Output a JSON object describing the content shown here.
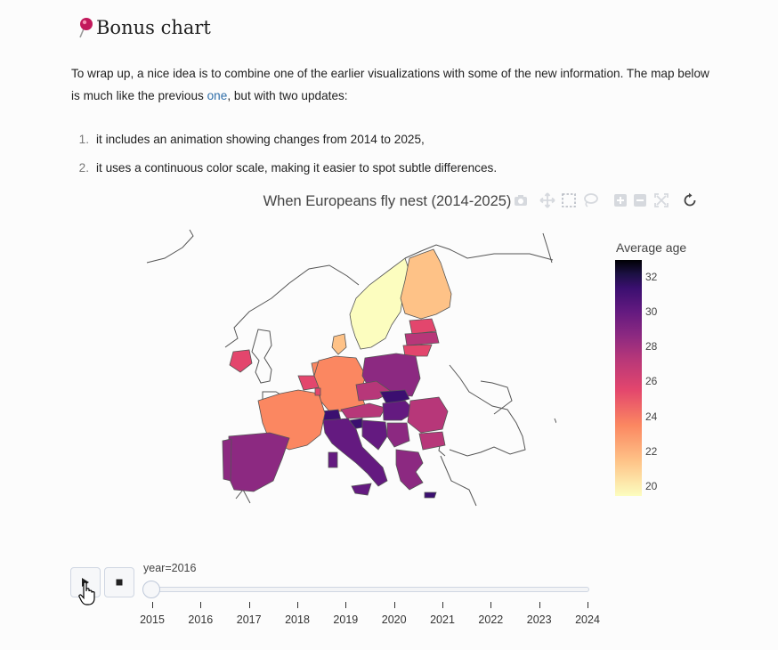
{
  "heading": {
    "icon": "pushpin-icon",
    "text": "Bonus chart"
  },
  "intro": {
    "before_link": "To wrap up, a nice idea is to combine one of the earlier visualizations with some of the new information. The map below is much like the previous ",
    "link": "one",
    "after_link": ", but with two updates:"
  },
  "list": [
    {
      "num": "1.",
      "text": "it includes an animation showing changes from 2014 to 2025,"
    },
    {
      "num": "2.",
      "text": "it uses a continuous color scale, making it easier to spot subtle differences."
    }
  ],
  "chart": {
    "title": "When Europeans fly nest (2014-2025)",
    "modebar_icons": [
      "camera-icon",
      "pan-icon",
      "box-select-icon",
      "lasso-icon",
      "zoom-in-icon",
      "zoom-out-icon",
      "autoscale-icon",
      "reset-icon"
    ]
  },
  "chart_data": {
    "type": "choropleth",
    "title": "When Europeans fly nest (2014-2025)",
    "colorbar": {
      "title": "Average age",
      "min": 19.5,
      "max": 33,
      "ticks": [
        20,
        22,
        24,
        26,
        28,
        30,
        32
      ]
    },
    "colorscale": [
      "#fcfdbf",
      "#fec287",
      "#fb8761",
      "#e3466d",
      "#b73779",
      "#8c2981",
      "#641a80",
      "#3b0f70",
      "#1c1044",
      "#000004"
    ],
    "animation_frame": "year",
    "current_frame": "2016"
  },
  "controls": {
    "play_icon": "play-icon",
    "stop_icon": "stop-icon",
    "slider_label": "year=2016",
    "slider_value": "2016",
    "years": [
      "2015",
      "2016",
      "2017",
      "2018",
      "2019",
      "2020",
      "2021",
      "2022",
      "2023",
      "2024"
    ]
  }
}
